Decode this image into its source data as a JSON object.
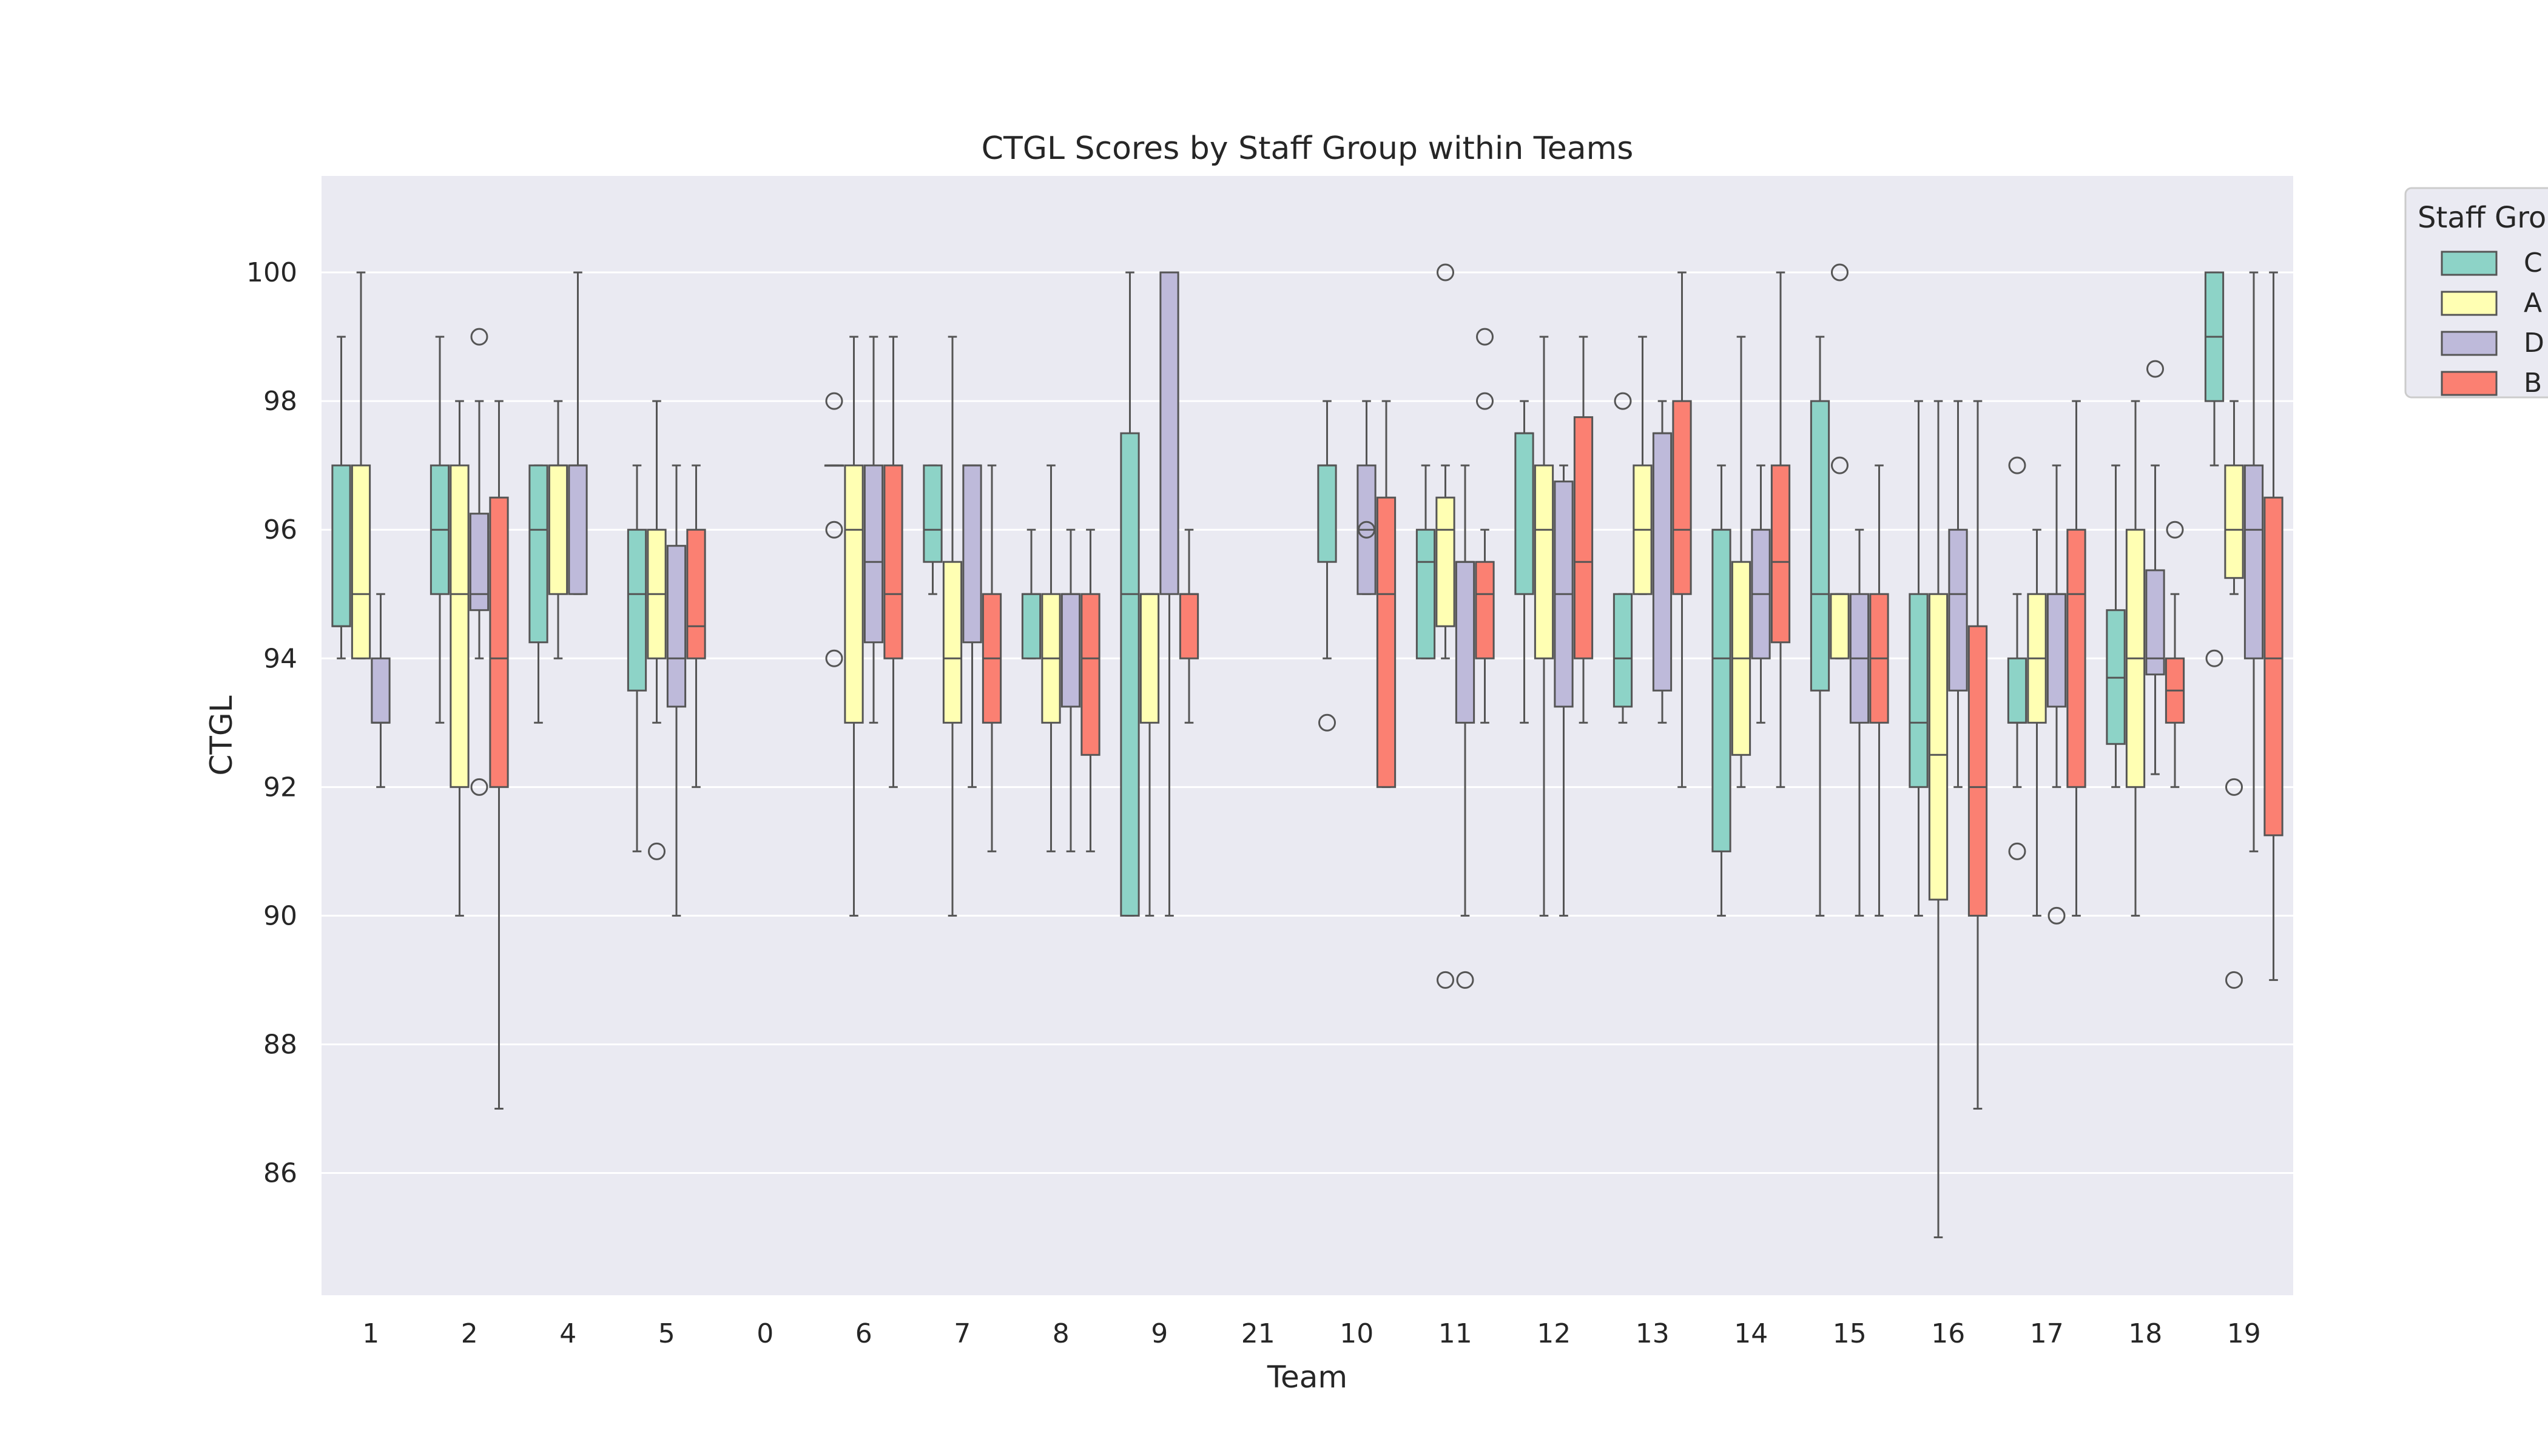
{
  "chart_data": {
    "type": "box",
    "title": "CTGL Scores by Staff Group within Teams",
    "xlabel": "Team",
    "ylabel": "CTGL",
    "categories": [
      "1",
      "2",
      "4",
      "5",
      "0",
      "6",
      "7",
      "8",
      "9",
      "21",
      "10",
      "11",
      "12",
      "13",
      "14",
      "15",
      "16",
      "17",
      "18",
      "19"
    ],
    "ylim": [
      84.1,
      101.5
    ],
    "yticks": [
      86,
      88,
      90,
      92,
      94,
      96,
      98,
      100
    ],
    "grid": true,
    "legend": {
      "title": "Staff Grou",
      "placement": "right-outside-top",
      "entries": [
        "C",
        "A",
        "D",
        "B"
      ]
    },
    "series": [
      {
        "name": "C",
        "color": "#8dd3c7",
        "boxes": {
          "1": {
            "whislo": 94,
            "q1": 94.5,
            "med": 94.5,
            "q3": 97,
            "whishi": 99,
            "fliers": []
          },
          "2": {
            "whislo": 93,
            "q1": 95,
            "med": 96,
            "q3": 97,
            "whishi": 99,
            "fliers": []
          },
          "4": {
            "whislo": 93,
            "q1": 94.25,
            "med": 96,
            "q3": 97,
            "whishi": 97,
            "fliers": []
          },
          "5": {
            "whislo": 91,
            "q1": 93.5,
            "med": 95,
            "q3": 96,
            "whishi": 97,
            "fliers": []
          },
          "6": {
            "whislo": 97,
            "q1": 97,
            "med": 97,
            "q3": 97,
            "whishi": 97,
            "fliers": [
              98,
              96,
              94
            ]
          },
          "7": {
            "whislo": 95,
            "q1": 95.5,
            "med": 96,
            "q3": 97,
            "whishi": 97,
            "fliers": []
          },
          "8": {
            "whislo": 94,
            "q1": 94,
            "med": 95,
            "q3": 95,
            "whishi": 96,
            "fliers": []
          },
          "9": {
            "whislo": 90,
            "q1": 90,
            "med": 95,
            "q3": 97.5,
            "whishi": 100,
            "fliers": []
          },
          "10": {
            "whislo": 94,
            "q1": 95.5,
            "med": 97,
            "q3": 97,
            "whishi": 98,
            "fliers": [
              93
            ]
          },
          "11": {
            "whislo": 94,
            "q1": 94,
            "med": 95.5,
            "q3": 96,
            "whishi": 97,
            "fliers": []
          },
          "12": {
            "whislo": 93,
            "q1": 95,
            "med": 97.5,
            "q3": 97.5,
            "whishi": 98,
            "fliers": []
          },
          "13": {
            "whislo": 93,
            "q1": 93.25,
            "med": 94,
            "q3": 95,
            "whishi": 95,
            "fliers": [
              98
            ]
          },
          "14": {
            "whislo": 90,
            "q1": 91,
            "med": 94,
            "q3": 96,
            "whishi": 97,
            "fliers": []
          },
          "15": {
            "whislo": 90,
            "q1": 93.5,
            "med": 95,
            "q3": 98,
            "whishi": 99,
            "fliers": []
          },
          "16": {
            "whislo": 90,
            "q1": 92,
            "med": 93,
            "q3": 95,
            "whishi": 98,
            "fliers": []
          },
          "17": {
            "whislo": 92,
            "q1": 93,
            "med": 93,
            "q3": 94,
            "whishi": 95,
            "fliers": [
              97,
              91
            ]
          },
          "18": {
            "whislo": 92,
            "q1": 92.67,
            "med": 93.7,
            "q3": 94.75,
            "whishi": 97,
            "fliers": []
          },
          "19": {
            "whislo": 97,
            "q1": 98,
            "med": 99,
            "q3": 100,
            "whishi": 100,
            "fliers": [
              94
            ]
          }
        }
      },
      {
        "name": "A",
        "color": "#ffffb3",
        "boxes": {
          "1": {
            "whislo": 94,
            "q1": 94,
            "med": 95,
            "q3": 97,
            "whishi": 100,
            "fliers": []
          },
          "2": {
            "whislo": 90,
            "q1": 92,
            "med": 95,
            "q3": 97,
            "whishi": 98,
            "fliers": []
          },
          "4": {
            "whislo": 94,
            "q1": 95,
            "med": 97,
            "q3": 97,
            "whishi": 98,
            "fliers": []
          },
          "5": {
            "whislo": 93,
            "q1": 94,
            "med": 95,
            "q3": 96,
            "whishi": 98,
            "fliers": [
              91
            ]
          },
          "6": {
            "whislo": 90,
            "q1": 93,
            "med": 96,
            "q3": 97,
            "whishi": 99,
            "fliers": []
          },
          "7": {
            "whislo": 90,
            "q1": 93,
            "med": 94,
            "q3": 95.5,
            "whishi": 99,
            "fliers": []
          },
          "8": {
            "whislo": 91,
            "q1": 93,
            "med": 94,
            "q3": 95,
            "whishi": 97,
            "fliers": []
          },
          "9": {
            "whislo": 90,
            "q1": 93,
            "med": 95,
            "q3": 95,
            "whishi": 95,
            "fliers": []
          },
          "11": {
            "whislo": 94,
            "q1": 94.5,
            "med": 96,
            "q3": 96.5,
            "whishi": 97,
            "fliers": [
              100,
              89
            ]
          },
          "12": {
            "whislo": 90,
            "q1": 94,
            "med": 96,
            "q3": 97,
            "whishi": 99,
            "fliers": []
          },
          "13": {
            "whislo": 95,
            "q1": 95,
            "med": 96,
            "q3": 97,
            "whishi": 99,
            "fliers": []
          },
          "14": {
            "whislo": 92,
            "q1": 92.5,
            "med": 94,
            "q3": 95.5,
            "whishi": 99,
            "fliers": []
          },
          "15": {
            "whislo": 94,
            "q1": 94,
            "med": 95,
            "q3": 95,
            "whishi": 95,
            "fliers": [
              97,
              100
            ]
          },
          "16": {
            "whislo": 85,
            "q1": 90.25,
            "med": 92.5,
            "q3": 95,
            "whishi": 98,
            "fliers": []
          },
          "17": {
            "whislo": 90,
            "q1": 93,
            "med": 94,
            "q3": 95,
            "whishi": 96,
            "fliers": []
          },
          "18": {
            "whislo": 90,
            "q1": 92,
            "med": 94,
            "q3": 96,
            "whishi": 98,
            "fliers": []
          },
          "19": {
            "whislo": 95,
            "q1": 95.25,
            "med": 96,
            "q3": 97,
            "whishi": 98,
            "fliers": [
              92,
              89
            ]
          }
        }
      },
      {
        "name": "D",
        "color": "#bebada",
        "boxes": {
          "1": {
            "whislo": 92,
            "q1": 93,
            "med": 93,
            "q3": 94,
            "whishi": 95,
            "fliers": []
          },
          "2": {
            "whislo": 94,
            "q1": 94.75,
            "med": 95,
            "q3": 96.25,
            "whishi": 98,
            "fliers": [
              99,
              92
            ]
          },
          "4": {
            "whislo": 95,
            "q1": 95,
            "med": 97,
            "q3": 97,
            "whishi": 100,
            "fliers": []
          },
          "5": {
            "whislo": 90,
            "q1": 93.25,
            "med": 94,
            "q3": 95.75,
            "whishi": 97,
            "fliers": []
          },
          "6": {
            "whislo": 93,
            "q1": 94.25,
            "med": 95.5,
            "q3": 97,
            "whishi": 99,
            "fliers": []
          },
          "7": {
            "whislo": 92,
            "q1": 94.25,
            "med": 97,
            "q3": 97,
            "whishi": 97,
            "fliers": []
          },
          "8": {
            "whislo": 91,
            "q1": 93.25,
            "med": 95,
            "q3": 95,
            "whishi": 96,
            "fliers": []
          },
          "9": {
            "whislo": 90,
            "q1": 95,
            "med": 100,
            "q3": 100,
            "whishi": 100,
            "fliers": []
          },
          "10": {
            "whislo": 95,
            "q1": 95,
            "med": 96,
            "q3": 97,
            "whishi": 98,
            "fliers": [
              96
            ]
          },
          "11": {
            "whislo": 90,
            "q1": 93,
            "med": 95.5,
            "q3": 95.5,
            "whishi": 97,
            "fliers": [
              89
            ]
          },
          "12": {
            "whislo": 90,
            "q1": 93.25,
            "med": 95,
            "q3": 96.75,
            "whishi": 97,
            "fliers": []
          },
          "13": {
            "whislo": 93,
            "q1": 93.5,
            "med": 97.5,
            "q3": 97.5,
            "whishi": 98,
            "fliers": []
          },
          "14": {
            "whislo": 93,
            "q1": 94,
            "med": 95,
            "q3": 96,
            "whishi": 97,
            "fliers": []
          },
          "15": {
            "whislo": 90,
            "q1": 93,
            "med": 94,
            "q3": 95,
            "whishi": 96,
            "fliers": []
          },
          "16": {
            "whislo": 92,
            "q1": 93.5,
            "med": 95,
            "q3": 96,
            "whishi": 98,
            "fliers": []
          },
          "17": {
            "whislo": 92,
            "q1": 93.25,
            "med": 95,
            "q3": 95,
            "whishi": 97,
            "fliers": [
              90
            ]
          },
          "18": {
            "whislo": 92.2,
            "q1": 93.75,
            "med": 94,
            "q3": 95.37,
            "whishi": 97,
            "fliers": [
              98.5
            ]
          },
          "19": {
            "whislo": 91,
            "q1": 94,
            "med": 96,
            "q3": 97,
            "whishi": 100,
            "fliers": []
          }
        }
      },
      {
        "name": "B",
        "color": "#fb8072",
        "boxes": {
          "2": {
            "whislo": 87,
            "q1": 92,
            "med": 94,
            "q3": 96.5,
            "whishi": 98,
            "fliers": []
          },
          "5": {
            "whislo": 92,
            "q1": 94,
            "med": 94.5,
            "q3": 96,
            "whishi": 97,
            "fliers": []
          },
          "6": {
            "whislo": 92,
            "q1": 94,
            "med": 95,
            "q3": 97,
            "whishi": 99,
            "fliers": []
          },
          "7": {
            "whislo": 91,
            "q1": 93,
            "med": 94,
            "q3": 95,
            "whishi": 97,
            "fliers": []
          },
          "8": {
            "whislo": 91,
            "q1": 92.5,
            "med": 94,
            "q3": 95,
            "whishi": 96,
            "fliers": []
          },
          "9": {
            "whislo": 93,
            "q1": 94,
            "med": 95,
            "q3": 95,
            "whishi": 96,
            "fliers": []
          },
          "10": {
            "whislo": 92,
            "q1": 92,
            "med": 95,
            "q3": 96.5,
            "whishi": 98,
            "fliers": []
          },
          "11": {
            "whislo": 93,
            "q1": 94,
            "med": 95,
            "q3": 95.5,
            "whishi": 96,
            "fliers": [
              99,
              98
            ]
          },
          "12": {
            "whislo": 93,
            "q1": 94,
            "med": 95.5,
            "q3": 97.75,
            "whishi": 99,
            "fliers": []
          },
          "13": {
            "whislo": 92,
            "q1": 95,
            "med": 96,
            "q3": 98,
            "whishi": 100,
            "fliers": []
          },
          "14": {
            "whislo": 92,
            "q1": 94.25,
            "med": 95.5,
            "q3": 97,
            "whishi": 100,
            "fliers": []
          },
          "15": {
            "whislo": 90,
            "q1": 93,
            "med": 94,
            "q3": 95,
            "whishi": 97,
            "fliers": []
          },
          "16": {
            "whislo": 87,
            "q1": 90,
            "med": 92,
            "q3": 94.5,
            "whishi": 98,
            "fliers": []
          },
          "17": {
            "whislo": 90,
            "q1": 92,
            "med": 95,
            "q3": 96,
            "whishi": 98,
            "fliers": []
          },
          "18": {
            "whislo": 92,
            "q1": 93,
            "med": 93.5,
            "q3": 94,
            "whishi": 95,
            "fliers": [
              96
            ]
          },
          "19": {
            "whislo": 89,
            "q1": 91.25,
            "med": 94,
            "q3": 96.5,
            "whishi": 100,
            "fliers": []
          }
        }
      }
    ]
  }
}
